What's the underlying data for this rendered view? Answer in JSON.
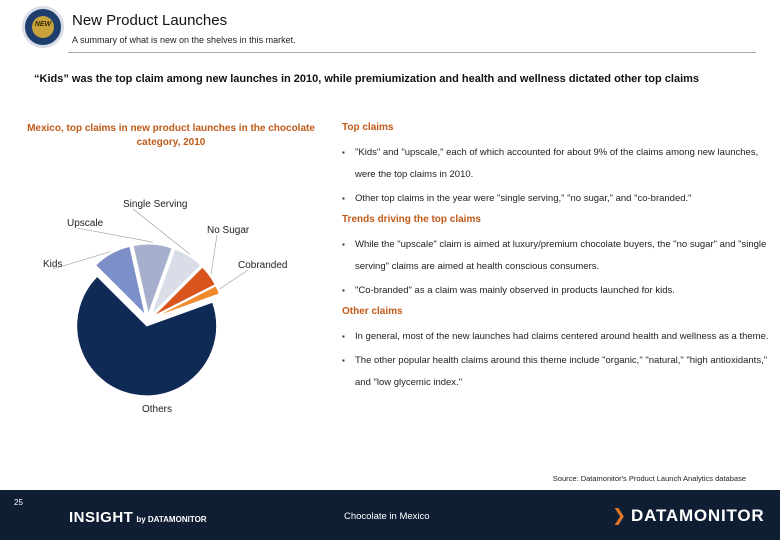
{
  "header": {
    "title": "New Product Launches",
    "subtitle": "A summary of what is new on the shelves in this market.",
    "logo_text": "NEW"
  },
  "headline": "“Kids” was the top claim among new launches in 2010, while premiumization and health and wellness dictated other top claims",
  "chart_title": "Mexico, top claims in new product launches in the chocolate category, 2010",
  "chart_data": {
    "type": "pie",
    "title": "Mexico, top claims in new product launches in the chocolate category, 2010",
    "categories": [
      "Kids",
      "Upscale",
      "Single Serving",
      "No Sugar",
      "Cobranded",
      "Others"
    ],
    "values": [
      9,
      9,
      7,
      5,
      2,
      68
    ],
    "colors": [
      "#7c8fc9",
      "#a6b0cc",
      "#d9dde8",
      "#d9531e",
      "#ef8a2e",
      "#0f2a55"
    ],
    "legend": "none (labels on slices)"
  },
  "sections": [
    {
      "heading": "Top claims",
      "bullets": [
        "\"Kids\" and \"upscale,\" each of which accounted for about 9% of the claims among new launches, were the top claims in 2010.",
        "Other top claims in the year were \"single serving,\" \"no sugar,\" and \"co-branded.\""
      ]
    },
    {
      "heading": "Trends driving the top claims",
      "bullets": [
        "While the \"upscale\" claim is aimed at luxury/premium chocolate buyers, the \"no sugar\" and \"single serving\" claims are aimed at health conscious consumers.",
        "\"Co-branded\" as a claim was mainly observed in products launched for kids."
      ]
    },
    {
      "heading": "Other claims",
      "bullets": [
        "In general, most of the new launches had claims centered around health and wellness as a theme.",
        "The other popular health claims around this theme include \"organic,\" \"natural,\" \"high antioxidants,\" and \"low glycemic index.\""
      ]
    }
  ],
  "source": "Source: Datamonitor's Product Launch Analytics database",
  "footer": {
    "page_number": "25",
    "brand_main": "INSIGHT",
    "brand_sub": "by DATAMONITOR",
    "topic": "Chocolate in Mexico",
    "company": "DATAMONITOR"
  }
}
